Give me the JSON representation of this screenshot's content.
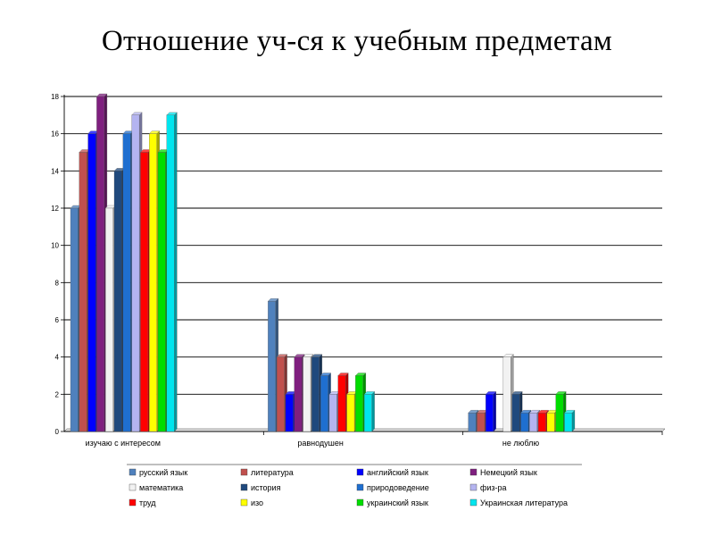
{
  "chart_data": {
    "type": "bar",
    "title": "Отношение уч-ся к учебным предметам",
    "categories": [
      "изучаю с интересом",
      "равнодушен",
      "не люблю"
    ],
    "yticks": [
      "0",
      "2",
      "4",
      "6",
      "8",
      "10",
      "12",
      "14",
      "16",
      "18"
    ],
    "ylim": [
      0,
      18
    ],
    "grid": true,
    "legend_position": "bottom",
    "series": [
      {
        "name": "русский язык",
        "color": "#4f81bd",
        "values": [
          12,
          7,
          1
        ]
      },
      {
        "name": "литература",
        "color": "#c0504d",
        "values": [
          15,
          4,
          1
        ]
      },
      {
        "name": "английский язык",
        "color": "#0000ff",
        "values": [
          16,
          2,
          2
        ]
      },
      {
        "name": "Немецкий язык",
        "color": "#7f1f7f",
        "values": [
          18,
          4,
          0
        ]
      },
      {
        "name": "математика",
        "color": "#f2f2f2",
        "values": [
          12,
          4,
          4
        ]
      },
      {
        "name": "история",
        "color": "#1f497d",
        "values": [
          14,
          4,
          2
        ]
      },
      {
        "name": "природоведение",
        "color": "#1f6fd0",
        "values": [
          16,
          3,
          1
        ]
      },
      {
        "name": "физ-ра",
        "color": "#b4b4f0",
        "values": [
          17,
          2,
          1
        ]
      },
      {
        "name": "труд",
        "color": "#ff0000",
        "values": [
          15,
          3,
          1
        ]
      },
      {
        "name": "изо",
        "color": "#ffff00",
        "values": [
          16,
          2,
          1
        ]
      },
      {
        "name": "украинский язык",
        "color": "#00dd00",
        "values": [
          15,
          3,
          2
        ]
      },
      {
        "name": "Украинская литература",
        "color": "#00e5ee",
        "values": [
          17,
          2,
          1
        ]
      }
    ]
  }
}
